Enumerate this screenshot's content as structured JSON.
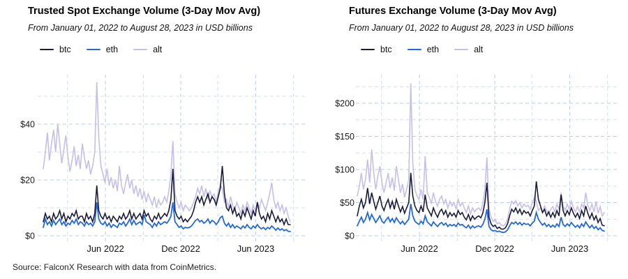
{
  "source_note": "Source: FalconX Research with data from CoinMetrics.",
  "colors": {
    "btc": "#1a1b38",
    "eth": "#2268d8",
    "alt": "#c6bfe7",
    "grid_major": "#b9cde6",
    "grid_minor": "#d2dff0",
    "background": "#ffffff"
  },
  "chart_data": [
    {
      "type": "line",
      "title": "Trusted Spot Exchange Volume (3-Day Mov Avg)",
      "subtitle": "From January 01, 2022 to August 28, 2023 in USD billions",
      "xlabel": "",
      "ylabel": "",
      "x_start": "2022-01-01",
      "x_end": "2023-08-28",
      "interval_days": 5,
      "x_tick_labels": [
        "Jun 2022",
        "Dec 2022",
        "Jun 2023"
      ],
      "x_major_tick_days": [
        151,
        334,
        516
      ],
      "x_minor_tick_days": [
        59,
        243,
        424,
        608
      ],
      "y_tick_labels": [
        "$0",
        "$20",
        "$40"
      ],
      "y_major_ticks": [
        0,
        20,
        40
      ],
      "y_minor_ticks": [
        10,
        30,
        50
      ],
      "ylim": [
        0,
        57
      ],
      "grid": "dashed-light-blue",
      "legend_position": "top-left",
      "series": [
        {
          "name": "btc",
          "color": "#1a1b38",
          "values": [
            5,
            8,
            6,
            7,
            5,
            8,
            6,
            7,
            9,
            6,
            8,
            5,
            7,
            6,
            8,
            7,
            9,
            6,
            7,
            7,
            5,
            8,
            6,
            7,
            5,
            8,
            18,
            9,
            7,
            6,
            8,
            6,
            7,
            5,
            7,
            6,
            5,
            7,
            6,
            8,
            6,
            7,
            9,
            6,
            8,
            6,
            7,
            8,
            6,
            9,
            7,
            8,
            6,
            5,
            7,
            6,
            8,
            6,
            7,
            8,
            7,
            9,
            13,
            24,
            9,
            7,
            6,
            7,
            5,
            6,
            5,
            6,
            7,
            9,
            12,
            14,
            12,
            14,
            11,
            13,
            15,
            12,
            14,
            13,
            11,
            14,
            17,
            25,
            15,
            10,
            9,
            11,
            8,
            10,
            7,
            8,
            6,
            9,
            7,
            10,
            8,
            6,
            9,
            7,
            12,
            8,
            6,
            7,
            5,
            8,
            6,
            9,
            7,
            5,
            7,
            5,
            6,
            4,
            6,
            4,
            4
          ]
        },
        {
          "name": "eth",
          "color": "#2268d8",
          "values": [
            3,
            6,
            4,
            5,
            3.5,
            5.5,
            4,
            5,
            6,
            4,
            5,
            3.5,
            4.5,
            4,
            5.5,
            4.5,
            6,
            4,
            5,
            4.5,
            3.5,
            5,
            4,
            4.5,
            3.5,
            5,
            12,
            6,
            4.5,
            4,
            5,
            3.5,
            4.5,
            3,
            4,
            3.5,
            3,
            4.5,
            4,
            5,
            3.5,
            4.5,
            6,
            4,
            5.5,
            4,
            4.5,
            5,
            4,
            7.5,
            5,
            4.5,
            4,
            3,
            4.5,
            3.5,
            5,
            4,
            4.5,
            5,
            4.5,
            5.5,
            7,
            12,
            5,
            4,
            3,
            3.5,
            2.5,
            3,
            2.8,
            3,
            3.5,
            4.5,
            5.5,
            6,
            5,
            5.5,
            4.5,
            5,
            6,
            4.5,
            5.5,
            5,
            4,
            5,
            6.5,
            7,
            4.5,
            3.5,
            4.5,
            3,
            4,
            2.8,
            3.5,
            3,
            2.5,
            3.5,
            2.8,
            4,
            3,
            2.5,
            3.5,
            2.8,
            4,
            3,
            2.5,
            3,
            2.2,
            3,
            2.5,
            3.5,
            2.8,
            2,
            2.8,
            2,
            2.5,
            1.8,
            2.2,
            1.6,
            1.5
          ]
        },
        {
          "name": "alt",
          "color": "#c6bfe7",
          "values": [
            24,
            30,
            37,
            27,
            33,
            38,
            30,
            40,
            33,
            26,
            31,
            36,
            28,
            23,
            27,
            32,
            25,
            29,
            24,
            33,
            28,
            24,
            27,
            22,
            25,
            30,
            55,
            35,
            25,
            22,
            19,
            24,
            18,
            21,
            17,
            20,
            16,
            25,
            18,
            15,
            19,
            22,
            17,
            20,
            15,
            18,
            14,
            17,
            13,
            16,
            12,
            15,
            13,
            11,
            14,
            10,
            13,
            11,
            12,
            14,
            12,
            16,
            22,
            34,
            15,
            12,
            10,
            12,
            9,
            11,
            10,
            9,
            10,
            12,
            14,
            17,
            15,
            18,
            14,
            17,
            13,
            16,
            14,
            15,
            12,
            16,
            18,
            17,
            12,
            13,
            10,
            14,
            11,
            9,
            12,
            10,
            8,
            11,
            9,
            12,
            10,
            8,
            11,
            9,
            12,
            10,
            13,
            11,
            9,
            12,
            15,
            19,
            13,
            10,
            12,
            9,
            11,
            8,
            10,
            7,
            5
          ]
        }
      ]
    },
    {
      "type": "line",
      "title": "Futures Exchange Volume (3-Day Mov Avg)",
      "subtitle": "From January 01, 2022 to August 28, 2023 in USD billions",
      "xlabel": "",
      "ylabel": "",
      "x_start": "2022-01-01",
      "x_end": "2023-08-28",
      "interval_days": 5,
      "x_tick_labels": [
        "Jun 2022",
        "Dec 2022",
        "Jun 2023"
      ],
      "x_major_tick_days": [
        151,
        334,
        516
      ],
      "x_minor_tick_days": [
        59,
        243,
        424,
        608
      ],
      "y_tick_labels": [
        "$0",
        "$50",
        "$100",
        "$150",
        "$200"
      ],
      "y_major_ticks": [
        0,
        50,
        100,
        150,
        200
      ],
      "y_minor_ticks": [
        25,
        75,
        125,
        175,
        225
      ],
      "ylim": [
        0,
        240
      ],
      "grid": "dashed-light-blue",
      "legend_position": "top-left",
      "series": [
        {
          "name": "btc",
          "color": "#1a1b38",
          "values": [
            30,
            45,
            55,
            42,
            50,
            72,
            48,
            65,
            52,
            40,
            50,
            60,
            45,
            38,
            48,
            55,
            42,
            52,
            40,
            55,
            45,
            36,
            44,
            34,
            42,
            50,
            95,
            60,
            45,
            38,
            35,
            45,
            36,
            62,
            42,
            36,
            30,
            42,
            34,
            28,
            36,
            40,
            32,
            38,
            28,
            35,
            30,
            34,
            28,
            38,
            32,
            35,
            28,
            24,
            32,
            23,
            30,
            25,
            28,
            30,
            27,
            34,
            50,
            80,
            28,
            18,
            14,
            16,
            11,
            13,
            10,
            10,
            12,
            18,
            30,
            40,
            36,
            42,
            34,
            40,
            32,
            38,
            34,
            36,
            30,
            38,
            45,
            82,
            55,
            45,
            35,
            40,
            30,
            36,
            28,
            35,
            28,
            38,
            30,
            62,
            38,
            30,
            38,
            32,
            42,
            34,
            28,
            34,
            26,
            38,
            30,
            45,
            34,
            26,
            34,
            24,
            30,
            20,
            26,
            16,
            15
          ]
        },
        {
          "name": "eth",
          "color": "#2268d8",
          "values": [
            15,
            22,
            28,
            20,
            25,
            35,
            24,
            32,
            26,
            20,
            25,
            30,
            22,
            19,
            24,
            28,
            21,
            26,
            20,
            27,
            22,
            18,
            22,
            17,
            21,
            25,
            48,
            30,
            22,
            19,
            17,
            22,
            18,
            30,
            21,
            18,
            15,
            21,
            17,
            14,
            18,
            20,
            16,
            19,
            14,
            17,
            15,
            17,
            14,
            19,
            16,
            17,
            14,
            12,
            16,
            11,
            15,
            12,
            14,
            15,
            13,
            17,
            25,
            40,
            14,
            9,
            7,
            8,
            6,
            7,
            5.5,
            5,
            6,
            9,
            15,
            20,
            18,
            21,
            17,
            20,
            16,
            19,
            17,
            18,
            15,
            19,
            22,
            35,
            25,
            20,
            16,
            19,
            14,
            17,
            13,
            16,
            13,
            18,
            14,
            28,
            17,
            14,
            18,
            15,
            20,
            16,
            13,
            16,
            12,
            18,
            14,
            21,
            16,
            12,
            16,
            11,
            14,
            9,
            12,
            8,
            7
          ]
        },
        {
          "name": "alt",
          "color": "#c6bfe7",
          "values": [
            60,
            75,
            95,
            70,
            85,
            115,
            80,
            130,
            95,
            70,
            90,
            105,
            80,
            65,
            80,
            95,
            72,
            88,
            68,
            105,
            85,
            65,
            78,
            58,
            70,
            85,
            230,
            110,
            70,
            60,
            55,
            70,
            55,
            120,
            65,
            58,
            48,
            65,
            52,
            45,
            55,
            60,
            48,
            55,
            42,
            52,
            45,
            50,
            40,
            55,
            45,
            50,
            42,
            35,
            45,
            33,
            42,
            36,
            40,
            42,
            38,
            48,
            70,
            118,
            40,
            28,
            22,
            25,
            18,
            20,
            16,
            15,
            18,
            25,
            40,
            52,
            48,
            53,
            45,
            50,
            42,
            48,
            44,
            46,
            40,
            50,
            58,
            52,
            38,
            42,
            35,
            45,
            38,
            33,
            40,
            44,
            36,
            48,
            40,
            65,
            45,
            38,
            48,
            40,
            52,
            42,
            36,
            44,
            36,
            48,
            42,
            65,
            46,
            38,
            48,
            36,
            52,
            34,
            44,
            30,
            35
          ]
        }
      ]
    }
  ]
}
